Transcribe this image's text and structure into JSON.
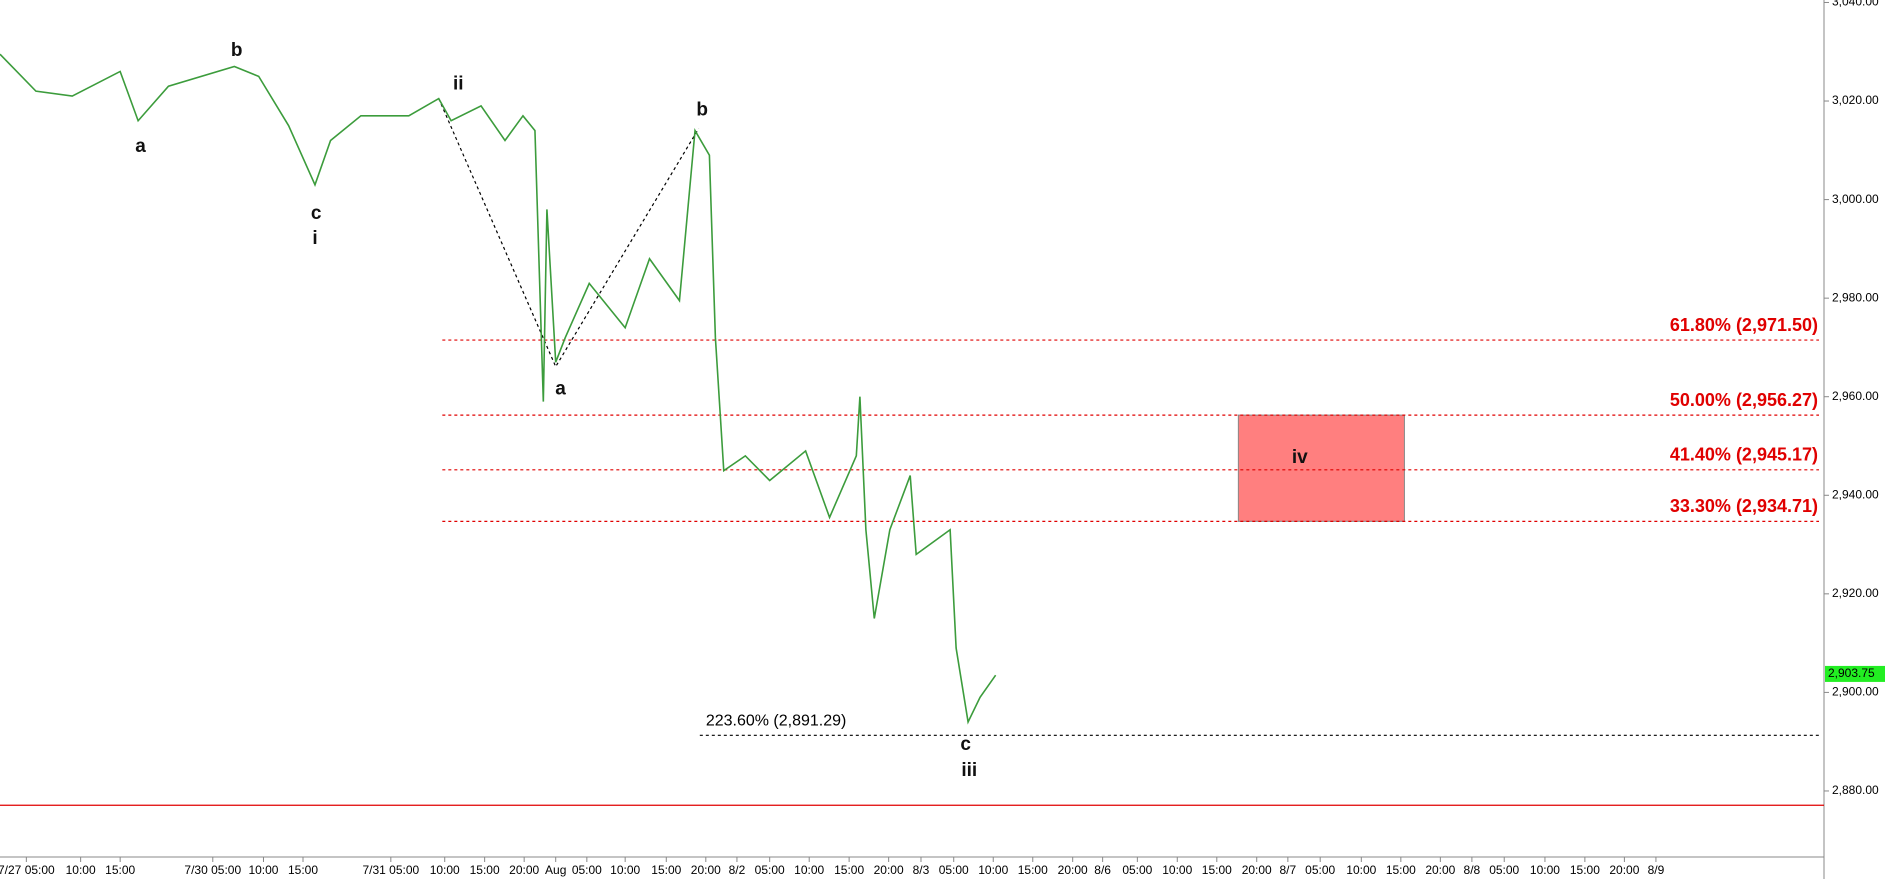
{
  "chart_data": {
    "type": "line",
    "x": [
      0,
      0.9,
      1.81,
      3.01,
      3.46,
      4.22,
      5.87,
      6.48,
      7.23,
      7.89,
      8.28,
      9.04,
      10.24,
      10.99,
      11.3,
      12.05,
      12.65,
      13.1,
      13.4,
      13.61,
      13.7,
      13.92,
      14.16,
      14.76,
      15.66,
      16.27,
      17.02,
      17.41,
      17.77,
      17.92,
      18.13,
      18.67,
      19.28,
      20.18,
      20.78,
      21.45,
      21.54,
      21.69,
      21.9,
      22.29,
      22.8,
      22.95,
      23.8,
      23.95,
      24.25,
      24.55,
      24.94
    ],
    "values": [
      3029.5,
      3022,
      3021,
      3026,
      3016,
      3023,
      3027,
      3025,
      3015,
      3003,
      3012,
      3017,
      3017,
      3020.5,
      3016,
      3019,
      3012,
      3017,
      3014,
      2959,
      2998,
      2967,
      2972,
      2983,
      2974,
      2988,
      2979.5,
      3014,
      3009,
      2972,
      2945,
      2948,
      2943,
      2949,
      2935.5,
      2948,
      2960,
      2933,
      2915,
      2933,
      2944,
      2928,
      2933,
      2909,
      2894,
      2899,
      2903.5
    ],
    "color": "#3c9c3c",
    "xlim": [
      0,
      45.69
    ],
    "ylim": [
      2866.6,
      3040.5
    ],
    "yticks": [
      {
        "value": 2880,
        "label": "2,880.00"
      },
      {
        "value": 2900,
        "label": "2,900.00"
      },
      {
        "value": 2920,
        "label": "2,920.00"
      },
      {
        "value": 2940,
        "label": "2,940.00"
      },
      {
        "value": 2960,
        "label": "2,960.00"
      },
      {
        "value": 2980,
        "label": "2,980.00"
      },
      {
        "value": 3000,
        "label": "3,000.00"
      },
      {
        "value": 3020,
        "label": "3,020.00"
      },
      {
        "value": 3040,
        "label": "3,040.00"
      }
    ],
    "xticks": [
      {
        "value": 0.66,
        "label": "7/27 05:00"
      },
      {
        "value": 2.02,
        "label": "10:00"
      },
      {
        "value": 3.01,
        "label": "15:00"
      },
      {
        "value": 5.33,
        "label": "7/30 05:00"
      },
      {
        "value": 6.6,
        "label": "10:00"
      },
      {
        "value": 7.59,
        "label": "15:00"
      },
      {
        "value": 9.79,
        "label": "7/31 05:00"
      },
      {
        "value": 11.14,
        "label": "10:00"
      },
      {
        "value": 12.14,
        "label": "15:00"
      },
      {
        "value": 13.13,
        "label": "20:00"
      },
      {
        "value": 13.92,
        "label": "Aug"
      },
      {
        "value": 14.7,
        "label": "05:00"
      },
      {
        "value": 15.66,
        "label": "10:00"
      },
      {
        "value": 16.69,
        "label": "15:00"
      },
      {
        "value": 17.68,
        "label": "20:00"
      },
      {
        "value": 18.46,
        "label": "8/2"
      },
      {
        "value": 19.28,
        "label": "05:00"
      },
      {
        "value": 20.27,
        "label": "10:00"
      },
      {
        "value": 21.27,
        "label": "15:00"
      },
      {
        "value": 22.26,
        "label": "20:00"
      },
      {
        "value": 23.07,
        "label": "8/3"
      },
      {
        "value": 23.89,
        "label": "05:00"
      },
      {
        "value": 24.88,
        "label": "10:00"
      },
      {
        "value": 25.87,
        "label": "15:00"
      },
      {
        "value": 26.87,
        "label": "20:00"
      },
      {
        "value": 27.62,
        "label": "8/6"
      },
      {
        "value": 28.49,
        "label": "05:00"
      },
      {
        "value": 29.49,
        "label": "10:00"
      },
      {
        "value": 30.48,
        "label": "15:00"
      },
      {
        "value": 31.48,
        "label": "20:00"
      },
      {
        "value": 32.26,
        "label": "8/7"
      },
      {
        "value": 33.07,
        "label": "05:00"
      },
      {
        "value": 34.1,
        "label": "10:00"
      },
      {
        "value": 35.09,
        "label": "15:00"
      },
      {
        "value": 36.08,
        "label": "20:00"
      },
      {
        "value": 36.87,
        "label": "8/8"
      },
      {
        "value": 37.68,
        "label": "05:00"
      },
      {
        "value": 38.7,
        "label": "10:00"
      },
      {
        "value": 39.7,
        "label": "15:00"
      },
      {
        "value": 40.69,
        "label": "20:00"
      },
      {
        "value": 41.48,
        "label": "8/9"
      }
    ],
    "fib_levels": [
      {
        "label": "61.80% (2,971.50)",
        "value": 2971.5,
        "x0": 11.08,
        "color": "#e00000"
      },
      {
        "label": "50.00% (2,956.27)",
        "value": 2956.27,
        "x0": 11.08,
        "color": "#e00000"
      },
      {
        "label": "41.40% (2,945.17)",
        "value": 2945.17,
        "x0": 11.08,
        "color": "#e00000"
      },
      {
        "label": "33.30% (2,934.71)",
        "value": 2934.71,
        "x0": 11.08,
        "color": "#e00000"
      },
      {
        "label": "223.60% (2,891.29)",
        "value": 2891.29,
        "x0": 17.53,
        "color": "#000000"
      }
    ],
    "support_line": {
      "value": 2877.1,
      "color": "#e00000"
    },
    "wave_path": {
      "x": [
        10.99,
        13.92,
        17.5
      ],
      "values": [
        3020.5,
        2966.1,
        3014.4
      ]
    },
    "target_box": {
      "x": [
        31.02,
        35.18
      ],
      "values": [
        2934.71,
        2956.27
      ],
      "color": "#ff7f7f"
    },
    "wave_labels": [
      {
        "text": "a",
        "x": 3.52,
        "y": 3010.7
      },
      {
        "text": "b",
        "x": 5.93,
        "y": 3030.2
      },
      {
        "text": "c",
        "x": 7.92,
        "y": 2997.1
      },
      {
        "text": "i",
        "x": 7.89,
        "y": 2992
      },
      {
        "text": "ii",
        "x": 11.48,
        "y": 3023.4
      },
      {
        "text": "a",
        "x": 14.04,
        "y": 2961.5
      },
      {
        "text": "b",
        "x": 17.59,
        "y": 3018.1
      },
      {
        "text": "c",
        "x": 24.19,
        "y": 2889.3
      },
      {
        "text": "iii",
        "x": 24.28,
        "y": 2884.1
      },
      {
        "text": "iv",
        "x": 32.56,
        "y": 2947.6
      }
    ],
    "last_price": {
      "value": 2903.75,
      "label": "2,903.75",
      "color": "#22ee22"
    }
  }
}
